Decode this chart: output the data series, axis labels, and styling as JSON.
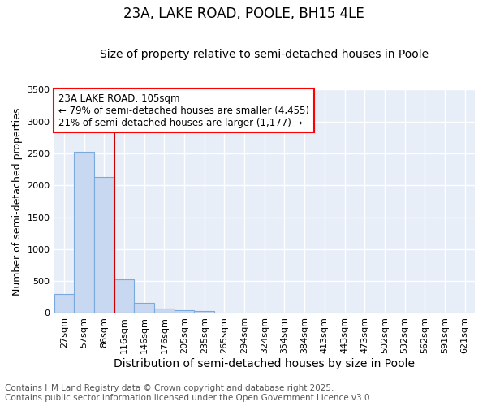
{
  "title": "23A, LAKE ROAD, POOLE, BH15 4LE",
  "subtitle": "Size of property relative to semi-detached houses in Poole",
  "xlabel": "Distribution of semi-detached houses by size in Poole",
  "ylabel": "Number of semi-detached properties",
  "categories": [
    "27sqm",
    "57sqm",
    "86sqm",
    "116sqm",
    "146sqm",
    "176sqm",
    "205sqm",
    "235sqm",
    "265sqm",
    "294sqm",
    "324sqm",
    "354sqm",
    "384sqm",
    "413sqm",
    "443sqm",
    "473sqm",
    "502sqm",
    "532sqm",
    "562sqm",
    "591sqm",
    "621sqm"
  ],
  "values": [
    300,
    2530,
    2130,
    530,
    155,
    75,
    40,
    30,
    10,
    0,
    0,
    0,
    0,
    0,
    0,
    0,
    0,
    0,
    0,
    0,
    0
  ],
  "bar_color": "#c8d8f0",
  "bar_edge_color": "#7aaadc",
  "red_line_x": 2.5,
  "red_line_color": "#cc0000",
  "annotation_title": "23A LAKE ROAD: 105sqm",
  "annotation_line1": "← 79% of semi-detached houses are smaller (4,455)",
  "annotation_line2": "21% of semi-detached houses are larger (1,177) →",
  "ylim": [
    0,
    3500
  ],
  "yticks": [
    0,
    500,
    1000,
    1500,
    2000,
    2500,
    3000,
    3500
  ],
  "background_color": "#e8eef8",
  "grid_color": "#ffffff",
  "footer_line1": "Contains HM Land Registry data © Crown copyright and database right 2025.",
  "footer_line2": "Contains public sector information licensed under the Open Government Licence v3.0.",
  "title_fontsize": 12,
  "subtitle_fontsize": 10,
  "axis_label_fontsize": 9,
  "tick_fontsize": 8,
  "annotation_fontsize": 8.5,
  "footer_fontsize": 7.5
}
